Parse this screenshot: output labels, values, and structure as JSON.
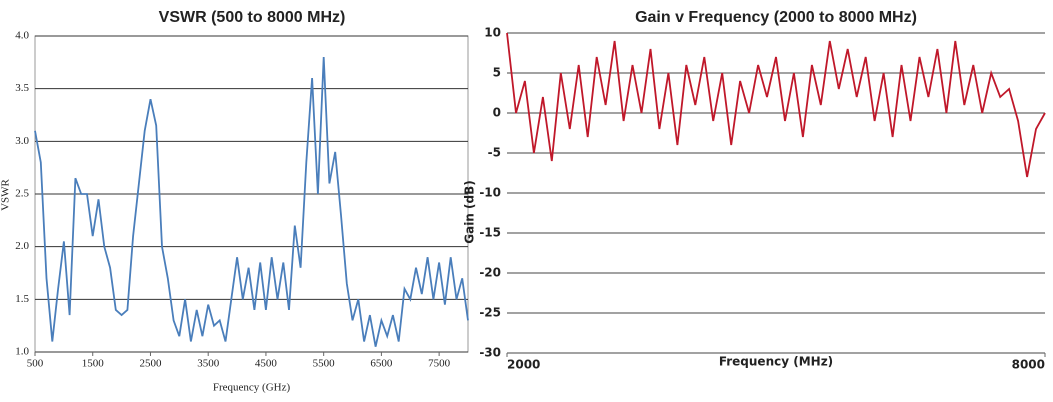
{
  "chart_data": [
    {
      "type": "line",
      "title": "VSWR (500 to 8000 MHz)",
      "x_label": "Frequency (GHz)",
      "y_label": "VSWR",
      "xlim": [
        500,
        8000
      ],
      "xticks": [
        500,
        1500,
        2500,
        3500,
        4500,
        5500,
        6500,
        7500
      ],
      "ylim": [
        1,
        4
      ],
      "yticks": [
        {
          "value": 1,
          "label": "1.0"
        },
        1.5,
        {
          "value": 2,
          "label": "2.0"
        },
        2.5,
        {
          "value": 3,
          "label": "3.0"
        },
        3.5,
        {
          "value": 4,
          "label": "4.0"
        }
      ],
      "grid": true,
      "x": [
        500,
        600,
        700,
        800,
        900,
        1000,
        1100,
        1200,
        1300,
        1400,
        1500,
        1600,
        1700,
        1800,
        1900,
        2000,
        2100,
        2200,
        2300,
        2400,
        2500,
        2600,
        2700,
        2800,
        2900,
        3000,
        3100,
        3200,
        3300,
        3400,
        3500,
        3600,
        3700,
        3800,
        3900,
        4000,
        4100,
        4200,
        4300,
        4400,
        4500,
        4600,
        4700,
        4800,
        4900,
        5000,
        5100,
        5200,
        5300,
        5400,
        5500,
        5600,
        5700,
        5800,
        5900,
        6000,
        6100,
        6200,
        6300,
        6400,
        6500,
        6600,
        6700,
        6800,
        6900,
        7000,
        7100,
        7200,
        7300,
        7400,
        7500,
        7600,
        7700,
        7800,
        7900,
        8000
      ],
      "series": [
        {
          "name": "VSWR",
          "color": "#4a7ebb",
          "values": [
            3.1,
            2.8,
            1.7,
            1.1,
            1.6,
            2.05,
            1.35,
            2.65,
            2.5,
            2.5,
            2.1,
            2.45,
            2.0,
            1.8,
            1.4,
            1.35,
            1.4,
            2.1,
            2.6,
            3.1,
            3.4,
            3.15,
            2.0,
            1.7,
            1.3,
            1.15,
            1.5,
            1.1,
            1.4,
            1.15,
            1.45,
            1.25,
            1.3,
            1.1,
            1.5,
            1.9,
            1.5,
            1.8,
            1.4,
            1.85,
            1.4,
            1.9,
            1.5,
            1.85,
            1.4,
            2.2,
            1.8,
            2.8,
            3.6,
            2.5,
            3.8,
            2.6,
            2.9,
            2.3,
            1.65,
            1.3,
            1.5,
            1.1,
            1.35,
            1.05,
            1.3,
            1.15,
            1.35,
            1.1,
            1.6,
            1.5,
            1.8,
            1.55,
            1.9,
            1.5,
            1.85,
            1.45,
            1.9,
            1.5,
            1.7,
            1.3
          ]
        }
      ]
    },
    {
      "type": "line",
      "title": "Gain v Frequency (2000 to 8000 MHz)",
      "x_label": "Frequency (MHz)",
      "y_label": "Gain (dB)",
      "xlim": [
        2000,
        8000
      ],
      "xticks": [
        2000,
        8000
      ],
      "ylim": [
        -30,
        10
      ],
      "yticks": [
        10,
        5,
        0,
        -5,
        -10,
        -15,
        -20,
        -25,
        -30
      ],
      "grid": true,
      "x": [
        2000,
        2100,
        2200,
        2300,
        2400,
        2500,
        2600,
        2700,
        2800,
        2900,
        3000,
        3100,
        3200,
        3300,
        3400,
        3500,
        3600,
        3700,
        3800,
        3900,
        4000,
        4100,
        4200,
        4300,
        4400,
        4500,
        4600,
        4700,
        4800,
        4900,
        5000,
        5100,
        5200,
        5300,
        5400,
        5500,
        5600,
        5700,
        5800,
        5900,
        6000,
        6100,
        6200,
        6300,
        6400,
        6500,
        6600,
        6700,
        6800,
        6900,
        7000,
        7100,
        7200,
        7300,
        7400,
        7500,
        7600,
        7700,
        7800,
        7900,
        8000
      ],
      "series": [
        {
          "name": "Gain",
          "color": "#c0182a",
          "values": [
            10,
            0,
            4,
            -5,
            2,
            -6,
            5,
            -2,
            6,
            -3,
            7,
            1,
            9,
            -1,
            6,
            0,
            8,
            -2,
            5,
            -4,
            6,
            1,
            7,
            -1,
            5,
            -4,
            4,
            0,
            6,
            2,
            7,
            -1,
            5,
            -3,
            6,
            1,
            9,
            3,
            8,
            2,
            7,
            -1,
            5,
            -3,
            6,
            -1,
            7,
            2,
            8,
            0,
            9,
            1,
            6,
            0,
            5,
            2,
            3,
            -1,
            -8,
            -2,
            0
          ]
        }
      ]
    }
  ]
}
